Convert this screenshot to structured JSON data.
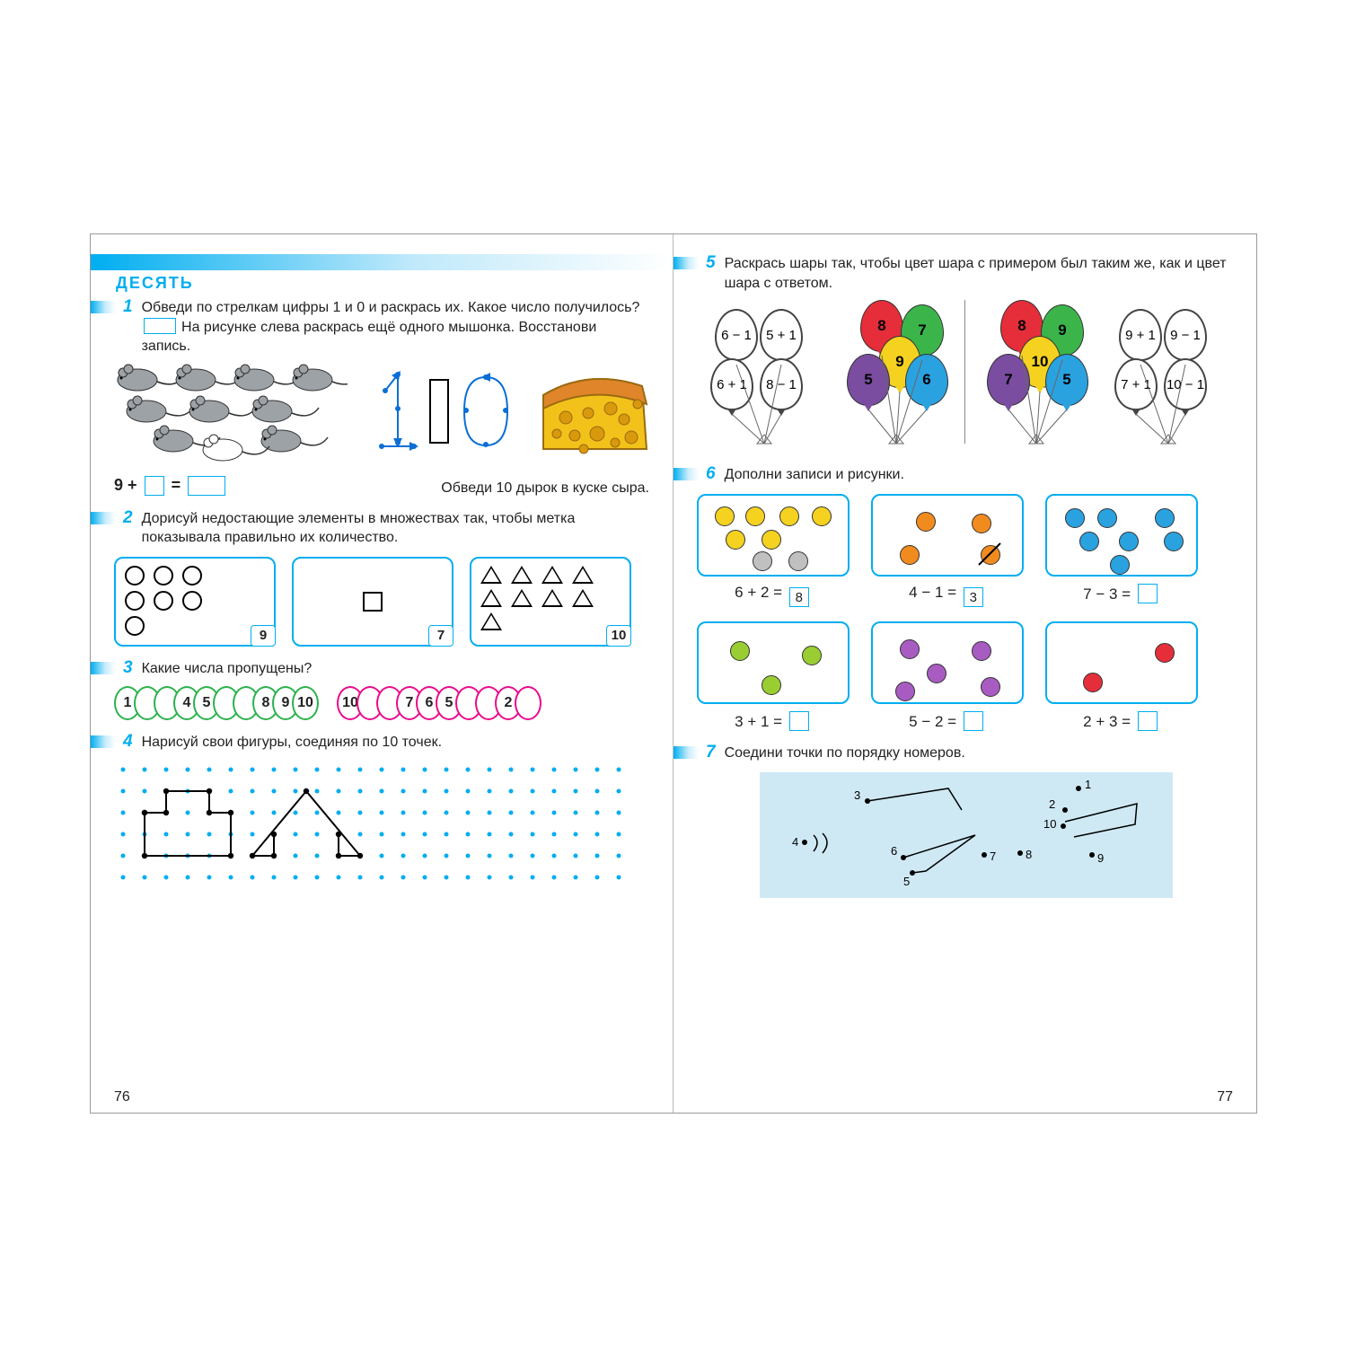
{
  "colors": {
    "accent": "#00aef0",
    "green": "#2bb24c",
    "pink": "#e90b8b",
    "cheese": "#f2c21a",
    "cheese_rind": "#e0852a",
    "mouse": "#9da2a7",
    "t7_bg": "#cfe9f4",
    "balloon": {
      "red": "#e52e3a",
      "green": "#3bb54a",
      "yellow": "#f4d21f",
      "blue": "#2aa2e0",
      "purple": "#7a4da0",
      "orange": "#f28b1e"
    }
  },
  "left": {
    "page_number": "76",
    "title": "ДЕСЯТЬ",
    "t1": {
      "num": "1",
      "text_a": "Обведи по стрелкам цифры 1 и 0 и раскрась их. Какое число получилось?",
      "text_b": "На рисунке слева раскрась ещё одного мышонка. Восстанови запись.",
      "equation_lhs": "9",
      "equation_op": "+",
      "caption_cheese": "Обведи 10 дырок в куске сыра."
    },
    "t2": {
      "num": "2",
      "text": "Дорисуй недостающие элементы в множествах так, чтобы метка показывала правильно их количество.",
      "boxes": [
        {
          "badge": "9",
          "shape": "circle",
          "count": 7
        },
        {
          "badge": "7",
          "shape": "square",
          "count": 1
        },
        {
          "badge": "10",
          "shape": "triangle",
          "count": 9
        }
      ]
    },
    "t3": {
      "num": "3",
      "text": "Какие числа пропущены?",
      "row_a": {
        "color": "green",
        "values": [
          "1",
          "",
          "",
          "4",
          "5",
          "",
          "",
          "8",
          "9",
          "10"
        ]
      },
      "row_b": {
        "color": "pink",
        "values": [
          "10",
          "",
          "",
          "7",
          "6",
          "5",
          "",
          "",
          "2",
          ""
        ]
      }
    },
    "t4": {
      "num": "4",
      "text": "Нарисуй свои фигуры, соединяя по 10 точек.",
      "grid": {
        "cols": 24,
        "rows": 6,
        "step": 24,
        "dot_color": "#00aef0",
        "dot_r": 2.5
      },
      "drawn_shapes": [
        {
          "type": "polyline",
          "pts": [
            [
              1,
              2
            ],
            [
              2,
              2
            ],
            [
              2,
              1
            ],
            [
              4,
              1
            ],
            [
              4,
              2
            ],
            [
              5,
              2
            ],
            [
              5,
              4
            ],
            [
              1,
              4
            ],
            [
              1,
              2
            ]
          ],
          "note": "T-piece (black dots)"
        },
        {
          "type": "polyline",
          "pts": [
            [
              7,
              3
            ],
            [
              7,
              4
            ],
            [
              6,
              4
            ],
            [
              8.5,
              1
            ],
            [
              11,
              4
            ],
            [
              10,
              4
            ],
            [
              10,
              3
            ]
          ],
          "note": "arrow-house outline"
        }
      ]
    }
  },
  "right": {
    "page_number": "77",
    "t5": {
      "num": "5",
      "text": "Раскрась шары так, чтобы цвет шара с примером был таким же, как и цвет шара с ответом.",
      "groups": [
        {
          "kind": "outline",
          "balloons": [
            {
              "label": "6 − 1"
            },
            {
              "label": "5 + 1"
            },
            {
              "label": "6 + 1"
            },
            {
              "label": "8 − 1"
            }
          ]
        },
        {
          "kind": "color",
          "balloons": [
            {
              "label": "8",
              "c": "red"
            },
            {
              "label": "7",
              "c": "green"
            },
            {
              "label": "9",
              "c": "yellow"
            },
            {
              "label": "5",
              "c": "purple"
            },
            {
              "label": "6",
              "c": "blue"
            }
          ]
        },
        {
          "kind": "color",
          "balloons": [
            {
              "label": "8",
              "c": "red"
            },
            {
              "label": "9",
              "c": "green"
            },
            {
              "label": "10",
              "c": "yellow"
            },
            {
              "label": "7",
              "c": "purple"
            },
            {
              "label": "5",
              "c": "blue"
            }
          ]
        },
        {
          "kind": "outline",
          "balloons": [
            {
              "label": "9 + 1"
            },
            {
              "label": "9 − 1"
            },
            {
              "label": "7 + 1"
            },
            {
              "label": "10 − 1"
            }
          ]
        }
      ]
    },
    "t6": {
      "num": "6",
      "text": "Дополни записи и рисунки.",
      "row1": [
        {
          "dots": [
            {
              "c": "#f4d21f"
            },
            {
              "c": "#f4d21f"
            },
            {
              "c": "#f4d21f"
            },
            {
              "c": "#f4d21f"
            },
            {
              "c": "#f4d21f"
            },
            {
              "c": "#f4d21f"
            },
            {
              "c": "#c0c0c0"
            },
            {
              "c": "#c0c0c0"
            }
          ],
          "eq": "6 + 2 =",
          "ans": "8"
        },
        {
          "dots": [
            {
              "c": "#f28b1e"
            },
            {
              "c": "#f28b1e"
            },
            {
              "c": "#f28b1e"
            },
            {
              "c": "#f28b1e",
              "crossed": true
            }
          ],
          "eq": "4 − 1 =",
          "ans": "3"
        },
        {
          "dots": [
            {
              "c": "#2aa2e0"
            },
            {
              "c": "#2aa2e0"
            },
            {
              "c": "#2aa2e0"
            },
            {
              "c": "#2aa2e0"
            },
            {
              "c": "#2aa2e0"
            },
            {
              "c": "#2aa2e0"
            },
            {
              "c": "#2aa2e0"
            }
          ],
          "eq": "7 − 3 =",
          "ans": ""
        }
      ],
      "row2": [
        {
          "dots": [
            {
              "c": "#9acd32"
            },
            {
              "c": "#9acd32"
            },
            {
              "c": "#9acd32"
            }
          ],
          "eq": "3 + 1 =",
          "ans": ""
        },
        {
          "dots": [
            {
              "c": "#a85cc2"
            },
            {
              "c": "#a85cc2"
            },
            {
              "c": "#a85cc2"
            },
            {
              "c": "#a85cc2"
            },
            {
              "c": "#a85cc2"
            }
          ],
          "eq": "5 − 2 =",
          "ans": ""
        },
        {
          "dots": [
            {
              "c": "#e52e3a"
            },
            {
              "c": "#e52e3a"
            }
          ],
          "eq": "2 + 3 =",
          "ans": ""
        }
      ]
    },
    "t7": {
      "num": "7",
      "text": "Соедини точки по порядку номеров.",
      "labels": [
        "1",
        "2",
        "3",
        "4",
        "5",
        "6",
        "7",
        "8",
        "9",
        "10"
      ]
    }
  }
}
